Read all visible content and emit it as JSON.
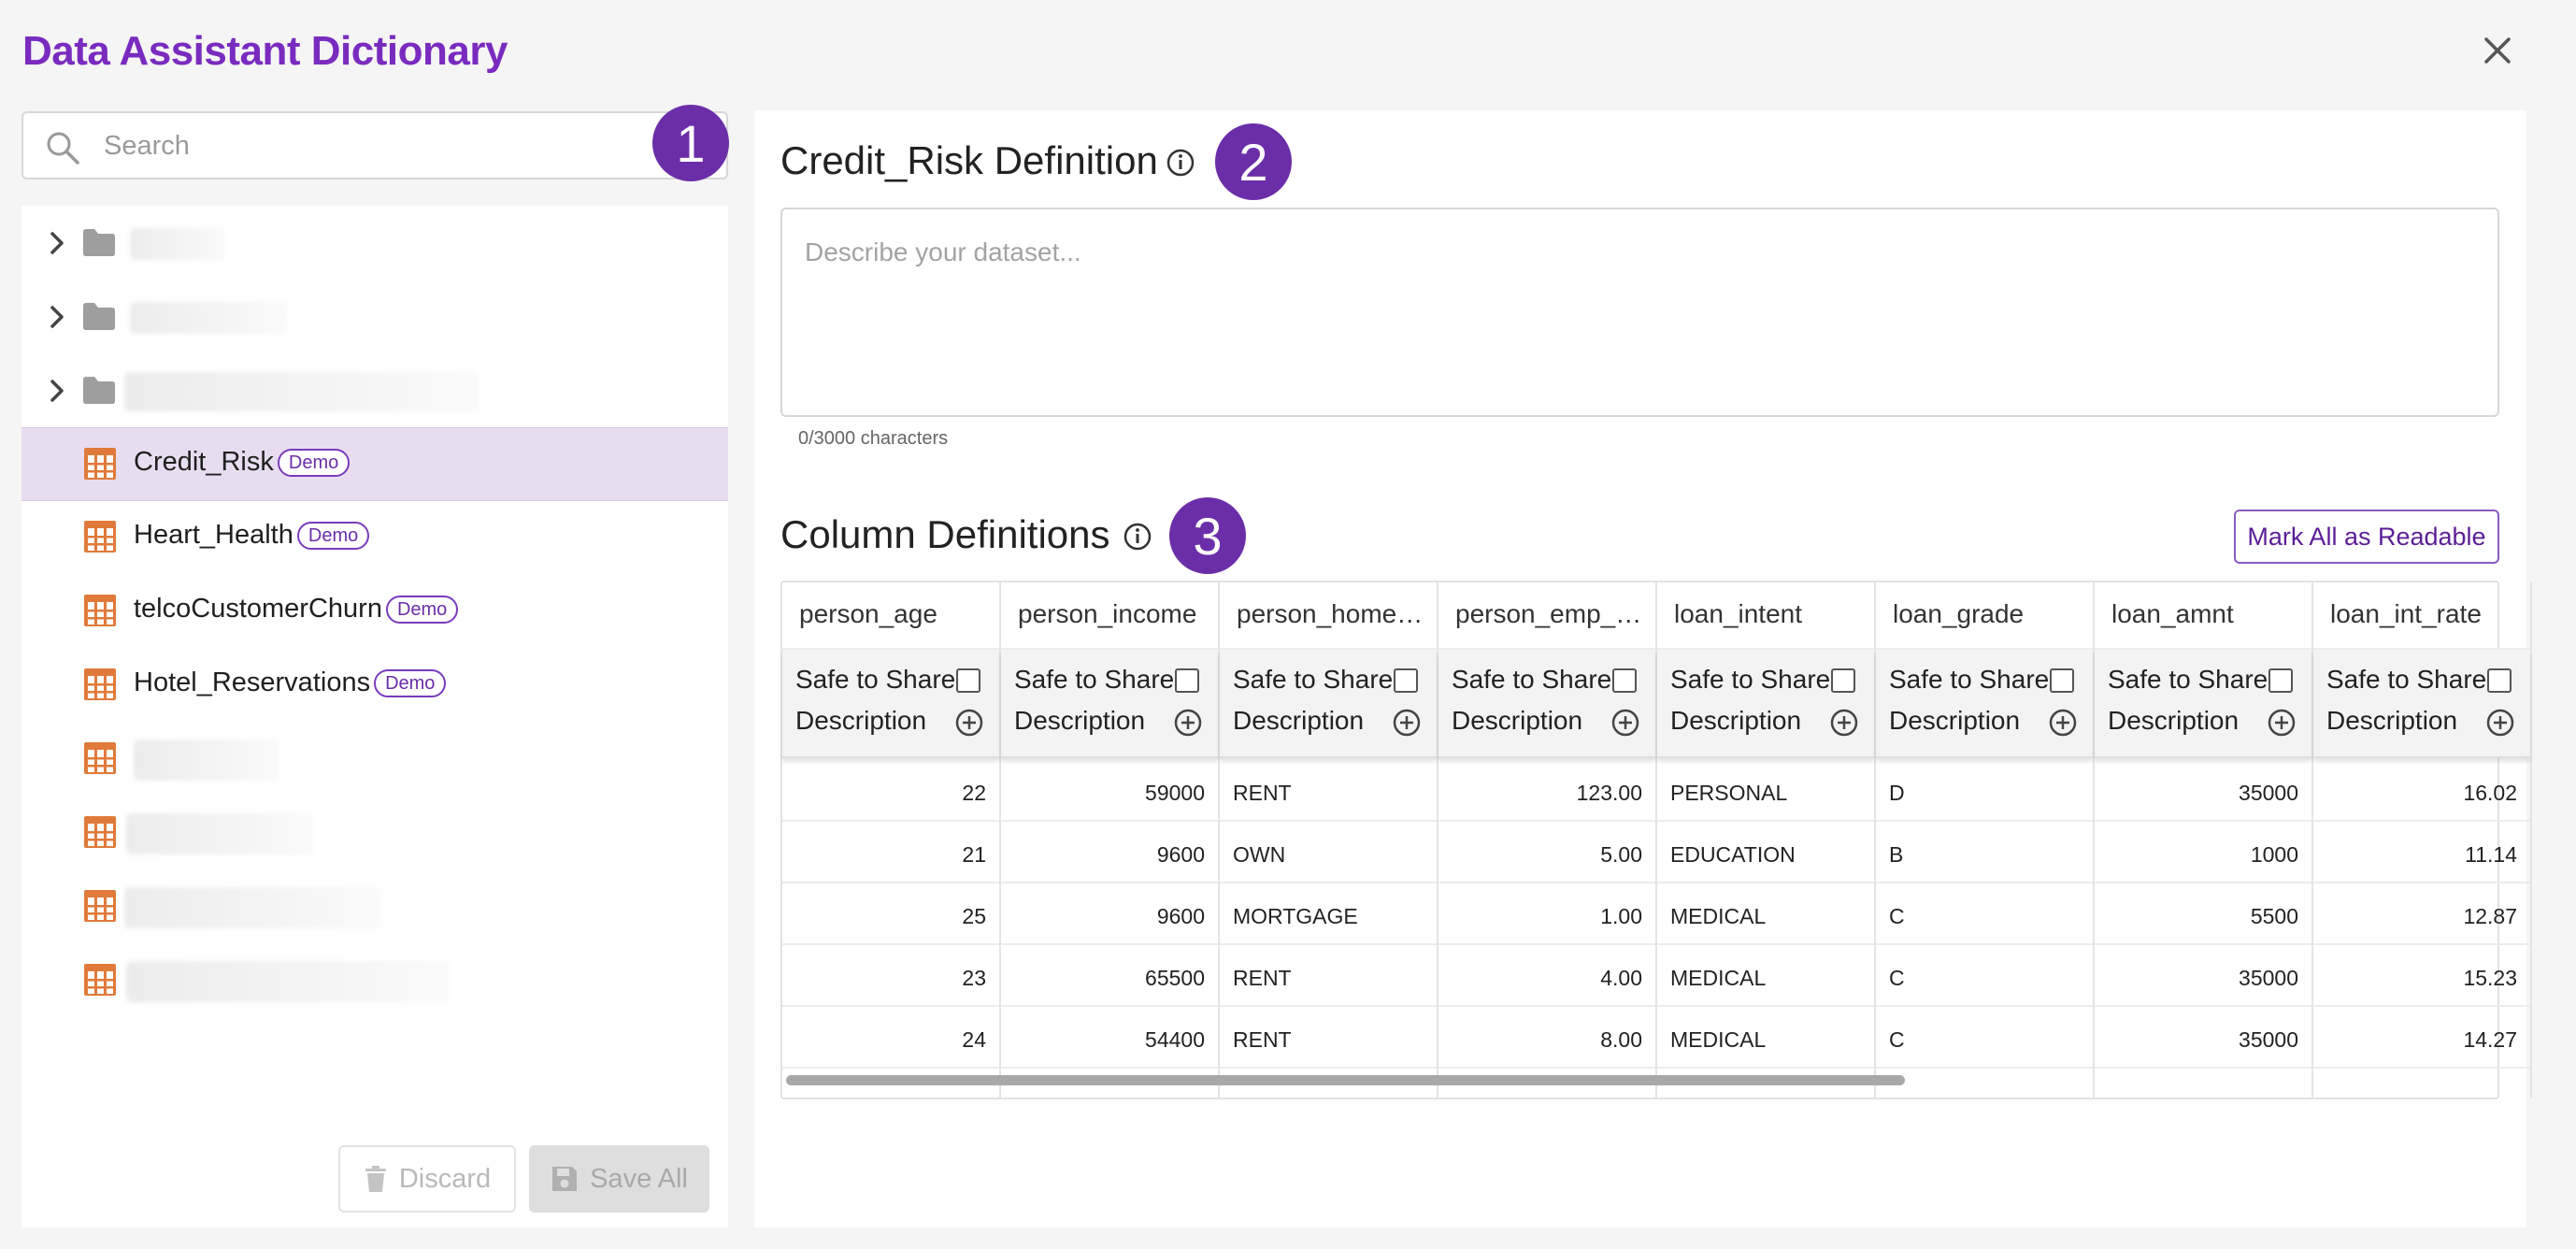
{
  "title": "Data Assistant Dictionary",
  "search": {
    "placeholder": "Search"
  },
  "markers": [
    "1",
    "2",
    "3"
  ],
  "tree": {
    "datasets": [
      {
        "label": "Credit_Risk",
        "badge": "Demo",
        "selected": true
      },
      {
        "label": "Heart_Health",
        "badge": "Demo"
      },
      {
        "label": "telcoCustomerChurn",
        "badge": "Demo"
      },
      {
        "label": "Hotel_Reservations",
        "badge": "Demo"
      }
    ]
  },
  "footer": {
    "discard_label": "Discard",
    "save_label": "Save All"
  },
  "definition": {
    "title": "Credit_Risk Definition",
    "placeholder": "Describe your dataset...",
    "char_count": "0/3000 characters"
  },
  "columns_section": {
    "title": "Column Definitions",
    "mark_all_label": "Mark All as Readable",
    "safe_label": "Safe to Share",
    "description_label": "Description",
    "columns": [
      {
        "name": "person_age",
        "align": "num",
        "values": [
          "22",
          "21",
          "25",
          "23",
          "24"
        ]
      },
      {
        "name": "person_income",
        "align": "num",
        "values": [
          "59000",
          "9600",
          "9600",
          "65500",
          "54400"
        ]
      },
      {
        "name": "person_home…",
        "align": "text",
        "values": [
          "RENT",
          "OWN",
          "MORTGAGE",
          "RENT",
          "RENT"
        ]
      },
      {
        "name": "person_emp_…",
        "align": "num",
        "values": [
          "123.00",
          "5.00",
          "1.00",
          "4.00",
          "8.00"
        ]
      },
      {
        "name": "loan_intent",
        "align": "text",
        "values": [
          "PERSONAL",
          "EDUCATION",
          "MEDICAL",
          "MEDICAL",
          "MEDICAL"
        ]
      },
      {
        "name": "loan_grade",
        "align": "text",
        "values": [
          "D",
          "B",
          "C",
          "C",
          "C"
        ]
      },
      {
        "name": "loan_amnt",
        "align": "num",
        "values": [
          "35000",
          "1000",
          "5500",
          "35000",
          "35000"
        ]
      },
      {
        "name": "loan_int_rate",
        "align": "num",
        "values": [
          "16.02",
          "11.14",
          "12.87",
          "15.23",
          "14.27"
        ]
      }
    ]
  },
  "colors": {
    "accent": "#7a2bbf",
    "marker": "#6b2ea8",
    "selected_bg": "#e8ddf0",
    "table_icon": "#e07a3a",
    "folder_icon": "#9e9e9e"
  }
}
